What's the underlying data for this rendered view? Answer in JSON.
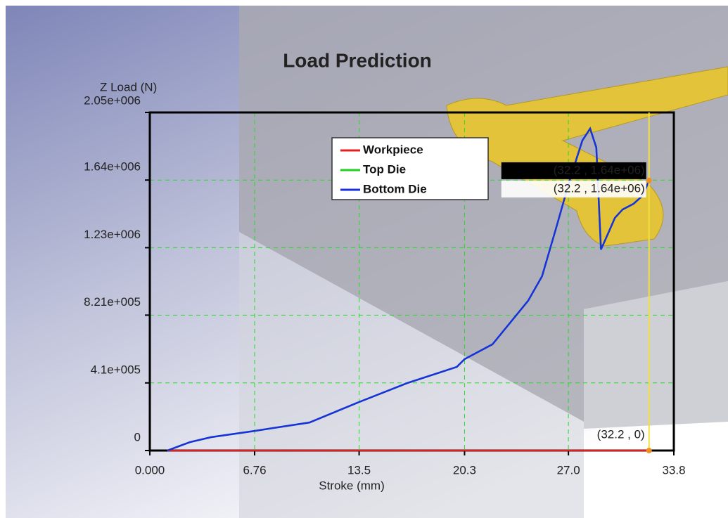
{
  "chart_data": {
    "type": "line",
    "title": "Load Prediction",
    "y_label": "Z Load (N)",
    "x_label": "Stroke (mm)",
    "x": [
      1.13,
      2.59,
      3.95,
      6.76,
      10.3,
      13.5,
      16.6,
      19.8,
      20.3,
      22.1,
      24.4,
      25.3,
      26.2,
      27.1,
      27.9,
      28.4,
      28.8,
      29.1,
      29.6,
      30.0,
      30.5,
      31.2,
      31.8,
      32.2
    ],
    "series": [
      {
        "name": "Workpiece",
        "color": "#e02020",
        "values": [
          0,
          0,
          0,
          0,
          0,
          0,
          0,
          0,
          0,
          0,
          0,
          0,
          0,
          0,
          0,
          0,
          0,
          0,
          0,
          0,
          0,
          0,
          0,
          0
        ]
      },
      {
        "name": "Top Die",
        "color": "#20d020",
        "values": [
          0,
          51000,
          81000,
          119000,
          170000,
          294000,
          409000,
          507000,
          554000,
          644000,
          908000,
          1057000,
          1347000,
          1645000,
          1880000,
          1952000,
          1837000,
          1219000,
          1325000,
          1411000,
          1462000,
          1496000,
          1547000,
          1637000
        ]
      },
      {
        "name": "Bottom Die",
        "color": "#1a2fe0",
        "values": [
          0,
          51000,
          81000,
          119000,
          170000,
          294000,
          409000,
          507000,
          554000,
          644000,
          908000,
          1057000,
          1347000,
          1645000,
          1880000,
          1952000,
          1837000,
          1219000,
          1325000,
          1411000,
          1462000,
          1496000,
          1547000,
          1637000
        ]
      }
    ],
    "xlim": [
      0,
      33.8
    ],
    "xticks": [
      {
        "value": 0,
        "label": "0.000"
      },
      6.76,
      13.5,
      20.3,
      {
        "value": 27,
        "label": "27.0"
      },
      33.8
    ],
    "ylim": [
      0,
      2050000
    ],
    "yticks": [
      0,
      {
        "value": 410000,
        "label": "4.1e+005"
      },
      {
        "value": 821000,
        "label": "8.21e+005"
      },
      {
        "value": 1230000,
        "label": "1.23e+006"
      },
      {
        "value": 1640000,
        "label": "1.64e+006"
      },
      {
        "value": 2050000,
        "label": "2.05e+006"
      }
    ],
    "grid": true,
    "cursor_x": 32.2,
    "cursor_labels": [
      "(32.2 , 1.64e+06)",
      "(32.2 , 1.64e+06)",
      "(32.2 , 0)"
    ]
  }
}
